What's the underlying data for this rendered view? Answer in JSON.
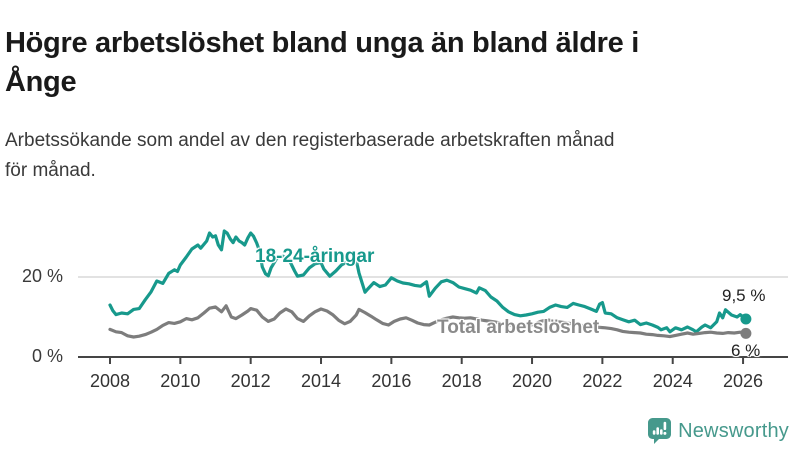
{
  "header": {
    "title_line1": "Högre arbetslöshet bland unga än bland äldre i",
    "title_line2": "Ånge",
    "subtitle_line1": "Arbetssökande som andel av den registerbaserade arbetskraften månad",
    "subtitle_line2": "för månad."
  },
  "brand": {
    "name": "Newsworthy",
    "color": "#46998c",
    "icon": "newsworthy-speech-bubble-bar-chart-icon"
  },
  "chart_data": {
    "type": "line",
    "title": "Högre arbetslöshet bland unga än bland äldre i Ånge",
    "subtitle": "Arbetssökande som andel av den registerbaserade arbetskraften månad för månad.",
    "unit": "%",
    "grid": "horizontal-at-20-only",
    "legend_position": "inline-labels-on-lines",
    "x_axis": {
      "range": [
        2008,
        2026.2
      ],
      "ticks": [
        2008,
        2010,
        2012,
        2014,
        2016,
        2018,
        2020,
        2022,
        2024,
        2026
      ]
    },
    "y_axis": {
      "range": [
        0,
        32
      ],
      "ticks": [
        {
          "value": 20,
          "label": "20 %"
        },
        {
          "value": 0,
          "label": "0 %"
        }
      ]
    },
    "series": [
      {
        "name": "18-24-åringar",
        "color": "#17998c",
        "end_label": "9,5 %",
        "end_value": 9.5,
        "points": [
          [
            2008.0,
            13.0
          ],
          [
            2008.08,
            11.6
          ],
          [
            2008.17,
            10.6
          ],
          [
            2008.33,
            11.0
          ],
          [
            2008.5,
            10.8
          ],
          [
            2008.67,
            11.9
          ],
          [
            2008.83,
            12.1
          ],
          [
            2009.0,
            14.3
          ],
          [
            2009.17,
            16.3
          ],
          [
            2009.33,
            19.0
          ],
          [
            2009.5,
            18.4
          ],
          [
            2009.67,
            20.9
          ],
          [
            2009.83,
            21.8
          ],
          [
            2009.92,
            21.4
          ],
          [
            2010.0,
            23.0
          ],
          [
            2010.17,
            25.0
          ],
          [
            2010.33,
            27.0
          ],
          [
            2010.5,
            28.0
          ],
          [
            2010.58,
            27.2
          ],
          [
            2010.75,
            29.0
          ],
          [
            2010.83,
            31.0
          ],
          [
            2010.92,
            30.0
          ],
          [
            2011.0,
            30.3
          ],
          [
            2011.08,
            28.0
          ],
          [
            2011.17,
            26.8
          ],
          [
            2011.25,
            31.5
          ],
          [
            2011.33,
            31.0
          ],
          [
            2011.42,
            29.5
          ],
          [
            2011.5,
            28.6
          ],
          [
            2011.58,
            30.0
          ],
          [
            2011.67,
            29.0
          ],
          [
            2011.75,
            28.6
          ],
          [
            2011.83,
            28.0
          ],
          [
            2011.92,
            29.8
          ],
          [
            2012.0,
            31.0
          ],
          [
            2012.08,
            30.2
          ],
          [
            2012.17,
            28.5
          ],
          [
            2012.25,
            26.5
          ],
          [
            2012.33,
            22.5
          ],
          [
            2012.42,
            20.8
          ],
          [
            2012.5,
            20.3
          ],
          [
            2012.58,
            22.3
          ],
          [
            2012.75,
            24.8
          ],
          [
            2012.92,
            25.2
          ],
          [
            2013.08,
            24.5
          ],
          [
            2013.25,
            21.5
          ],
          [
            2013.33,
            20.2
          ],
          [
            2013.5,
            20.5
          ],
          [
            2013.67,
            22.3
          ],
          [
            2013.83,
            23.3
          ],
          [
            2014.0,
            23.6
          ],
          [
            2014.08,
            22.0
          ],
          [
            2014.25,
            20.2
          ],
          [
            2014.42,
            21.5
          ],
          [
            2014.58,
            23.0
          ],
          [
            2014.75,
            23.8
          ],
          [
            2014.92,
            23.3
          ],
          [
            2015.0,
            24.3
          ],
          [
            2015.08,
            21.0
          ],
          [
            2015.25,
            16.2
          ],
          [
            2015.33,
            17.0
          ],
          [
            2015.5,
            18.6
          ],
          [
            2015.67,
            17.6
          ],
          [
            2015.83,
            18.0
          ],
          [
            2016.0,
            19.8
          ],
          [
            2016.17,
            19.0
          ],
          [
            2016.33,
            18.5
          ],
          [
            2016.5,
            18.3
          ],
          [
            2016.67,
            17.9
          ],
          [
            2016.83,
            17.7
          ],
          [
            2017.0,
            18.8
          ],
          [
            2017.08,
            15.2
          ],
          [
            2017.25,
            17.2
          ],
          [
            2017.42,
            18.8
          ],
          [
            2017.58,
            19.2
          ],
          [
            2017.75,
            18.6
          ],
          [
            2017.92,
            17.5
          ],
          [
            2018.08,
            17.1
          ],
          [
            2018.25,
            16.7
          ],
          [
            2018.42,
            16.0
          ],
          [
            2018.5,
            17.3
          ],
          [
            2018.67,
            16.6
          ],
          [
            2018.83,
            15.0
          ],
          [
            2019.0,
            14.0
          ],
          [
            2019.17,
            12.4
          ],
          [
            2019.33,
            11.3
          ],
          [
            2019.5,
            10.6
          ],
          [
            2019.67,
            10.3
          ],
          [
            2019.83,
            10.5
          ],
          [
            2020.0,
            10.8
          ],
          [
            2020.17,
            11.2
          ],
          [
            2020.33,
            11.4
          ],
          [
            2020.5,
            12.4
          ],
          [
            2020.67,
            13.0
          ],
          [
            2020.83,
            12.6
          ],
          [
            2021.0,
            12.4
          ],
          [
            2021.17,
            13.4
          ],
          [
            2021.33,
            13.0
          ],
          [
            2021.5,
            12.6
          ],
          [
            2021.67,
            12.0
          ],
          [
            2021.83,
            11.4
          ],
          [
            2021.92,
            13.2
          ],
          [
            2022.0,
            13.6
          ],
          [
            2022.08,
            11.0
          ],
          [
            2022.25,
            10.8
          ],
          [
            2022.42,
            9.8
          ],
          [
            2022.58,
            9.3
          ],
          [
            2022.75,
            8.8
          ],
          [
            2022.92,
            9.2
          ],
          [
            2023.08,
            8.1
          ],
          [
            2023.25,
            8.5
          ],
          [
            2023.42,
            8.0
          ],
          [
            2023.58,
            7.4
          ],
          [
            2023.67,
            6.8
          ],
          [
            2023.83,
            7.3
          ],
          [
            2023.92,
            6.3
          ],
          [
            2024.08,
            7.3
          ],
          [
            2024.25,
            6.8
          ],
          [
            2024.42,
            7.5
          ],
          [
            2024.58,
            6.8
          ],
          [
            2024.67,
            6.3
          ],
          [
            2024.83,
            7.5
          ],
          [
            2024.92,
            8.0
          ],
          [
            2025.08,
            7.3
          ],
          [
            2025.25,
            8.8
          ],
          [
            2025.33,
            11.0
          ],
          [
            2025.42,
            9.8
          ],
          [
            2025.5,
            11.8
          ],
          [
            2025.67,
            10.5
          ],
          [
            2025.83,
            10.0
          ],
          [
            2025.92,
            10.6
          ],
          [
            2026.08,
            9.5
          ]
        ]
      },
      {
        "name": "Total arbetslöshet",
        "color": "#7d7d7d",
        "label_color": "#8a8a8a",
        "end_label": "6 %",
        "end_value": 6,
        "points": [
          [
            2008.0,
            6.9
          ],
          [
            2008.17,
            6.3
          ],
          [
            2008.33,
            6.1
          ],
          [
            2008.5,
            5.3
          ],
          [
            2008.67,
            5.0
          ],
          [
            2008.83,
            5.2
          ],
          [
            2009.0,
            5.6
          ],
          [
            2009.17,
            6.2
          ],
          [
            2009.33,
            6.9
          ],
          [
            2009.5,
            7.9
          ],
          [
            2009.67,
            8.6
          ],
          [
            2009.83,
            8.4
          ],
          [
            2010.0,
            8.8
          ],
          [
            2010.17,
            9.6
          ],
          [
            2010.33,
            9.3
          ],
          [
            2010.5,
            9.8
          ],
          [
            2010.67,
            11.0
          ],
          [
            2010.83,
            12.2
          ],
          [
            2011.0,
            12.5
          ],
          [
            2011.17,
            11.3
          ],
          [
            2011.3,
            12.8
          ],
          [
            2011.45,
            10.0
          ],
          [
            2011.58,
            9.6
          ],
          [
            2011.75,
            10.5
          ],
          [
            2011.92,
            11.5
          ],
          [
            2012.0,
            12.1
          ],
          [
            2012.17,
            11.7
          ],
          [
            2012.33,
            10.0
          ],
          [
            2012.5,
            8.9
          ],
          [
            2012.67,
            9.5
          ],
          [
            2012.83,
            11.0
          ],
          [
            2013.0,
            12.0
          ],
          [
            2013.17,
            11.3
          ],
          [
            2013.33,
            9.6
          ],
          [
            2013.5,
            8.9
          ],
          [
            2013.67,
            10.3
          ],
          [
            2013.83,
            11.3
          ],
          [
            2014.0,
            12.0
          ],
          [
            2014.17,
            11.5
          ],
          [
            2014.33,
            10.6
          ],
          [
            2014.5,
            9.2
          ],
          [
            2014.67,
            8.3
          ],
          [
            2014.83,
            8.9
          ],
          [
            2015.0,
            10.5
          ],
          [
            2015.08,
            11.9
          ],
          [
            2015.25,
            11.1
          ],
          [
            2015.42,
            10.2
          ],
          [
            2015.58,
            9.3
          ],
          [
            2015.75,
            8.4
          ],
          [
            2015.92,
            8.0
          ],
          [
            2016.08,
            8.9
          ],
          [
            2016.25,
            9.5
          ],
          [
            2016.42,
            9.8
          ],
          [
            2016.58,
            9.2
          ],
          [
            2016.75,
            8.5
          ],
          [
            2016.92,
            8.1
          ],
          [
            2017.08,
            8.0
          ],
          [
            2017.25,
            8.7
          ],
          [
            2017.42,
            9.3
          ],
          [
            2017.58,
            9.7
          ],
          [
            2017.75,
            10.0
          ],
          [
            2017.92,
            9.8
          ],
          [
            2018.08,
            9.7
          ],
          [
            2018.25,
            9.8
          ],
          [
            2018.42,
            9.5
          ],
          [
            2018.58,
            9.2
          ],
          [
            2018.75,
            9.0
          ],
          [
            2018.92,
            8.8
          ],
          [
            2019.08,
            8.5
          ],
          [
            2019.25,
            8.2
          ],
          [
            2019.42,
            7.9
          ],
          [
            2019.58,
            7.7
          ],
          [
            2019.75,
            7.6
          ],
          [
            2019.92,
            7.8
          ],
          [
            2020.08,
            8.3
          ],
          [
            2020.25,
            8.9
          ],
          [
            2020.42,
            9.3
          ],
          [
            2020.58,
            9.1
          ],
          [
            2020.75,
            8.8
          ],
          [
            2020.92,
            8.6
          ],
          [
            2021.08,
            8.4
          ],
          [
            2021.25,
            8.2
          ],
          [
            2021.42,
            7.9
          ],
          [
            2021.58,
            7.7
          ],
          [
            2021.75,
            7.5
          ],
          [
            2021.92,
            7.4
          ],
          [
            2022.08,
            7.3
          ],
          [
            2022.25,
            7.1
          ],
          [
            2022.42,
            6.8
          ],
          [
            2022.58,
            6.4
          ],
          [
            2022.75,
            6.2
          ],
          [
            2022.92,
            6.1
          ],
          [
            2023.08,
            6.0
          ],
          [
            2023.25,
            5.7
          ],
          [
            2023.42,
            5.6
          ],
          [
            2023.58,
            5.4
          ],
          [
            2023.75,
            5.3
          ],
          [
            2023.92,
            5.1
          ],
          [
            2024.08,
            5.4
          ],
          [
            2024.25,
            5.7
          ],
          [
            2024.42,
            6.0
          ],
          [
            2024.58,
            5.7
          ],
          [
            2024.75,
            5.9
          ],
          [
            2024.92,
            6.1
          ],
          [
            2025.08,
            6.2
          ],
          [
            2025.25,
            6.0
          ],
          [
            2025.42,
            5.9
          ],
          [
            2025.58,
            6.1
          ],
          [
            2025.75,
            6.0
          ],
          [
            2025.92,
            6.2
          ],
          [
            2026.08,
            5.9
          ]
        ]
      }
    ],
    "colors": {
      "axis": "#454545",
      "gridline": "#d9d9d9",
      "tick_label": "#333333"
    }
  }
}
